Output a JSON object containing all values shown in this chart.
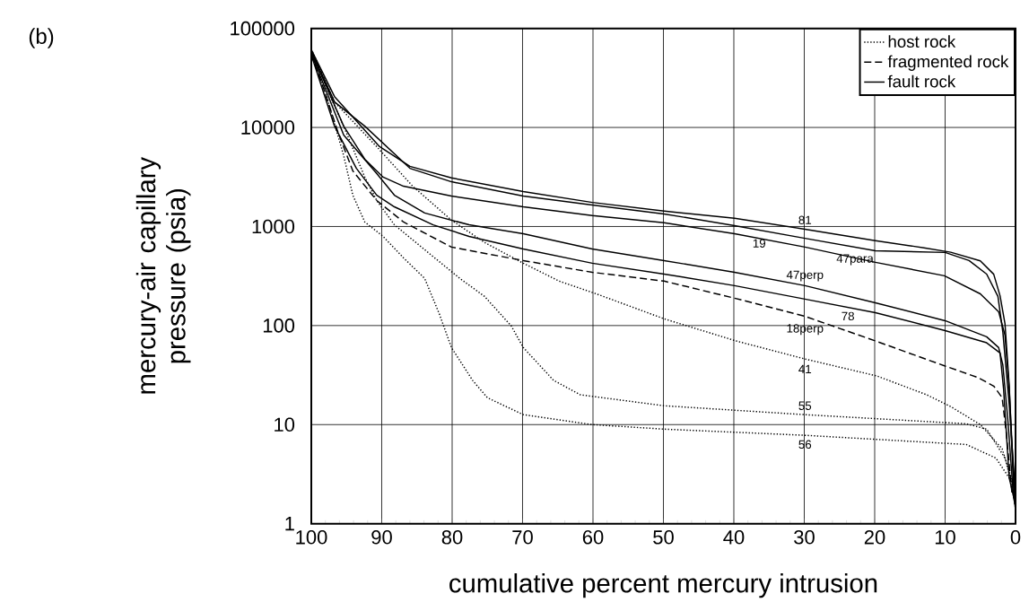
{
  "chart_data": {
    "type": "line",
    "xlabel": "cumulative percent mercury intrusion",
    "ylabel": "mercury-air capillary pressure (psia)",
    "xlim": [
      100,
      0
    ],
    "ylim": [
      1,
      100000
    ],
    "log": "y",
    "grid": true,
    "legend": "top right",
    "xticks": [
      100,
      90,
      80,
      70,
      60,
      50,
      40,
      30,
      20,
      10,
      0
    ],
    "yticks": [
      1,
      10,
      100,
      1000,
      10000,
      100000
    ],
    "series": [
      {
        "name": "host rock",
        "color": "#000000",
        "line_style": "dotted",
        "x": [
          100,
          96.7,
          90.7,
          85.6,
          80.1,
          75.4,
          69.9,
          64.8,
          59.2,
          49.9,
          39.7,
          29.9,
          19.7,
          12.6,
          9.2,
          5.0,
          1.9,
          0.6,
          0
        ],
        "values": [
          62000,
          18100,
          6380,
          2550,
          1160,
          690,
          426,
          281,
          205,
          117,
          70,
          46,
          31,
          20,
          15.2,
          10,
          5.7,
          2.9,
          1.4
        ]
      },
      {
        "color": "#000000",
        "line_style": "dotted",
        "x": [
          100,
          97.7,
          95.4,
          92.4,
          90.7,
          88.2,
          83.1,
          78.9,
          75.4,
          71.6,
          69.9,
          65.6,
          61.8,
          49.9,
          29.9,
          7.0,
          4.1,
          1.5,
          0.3,
          0
        ],
        "values": [
          60000,
          23800,
          10300,
          3150,
          1830,
          1040,
          524,
          299,
          197,
          99,
          60,
          28,
          20,
          15.5,
          12.6,
          10.2,
          9.0,
          4.6,
          2.2,
          1.6
        ]
      },
      {
        "color": "#000000",
        "line_style": "dotted",
        "x": [
          100,
          97.7,
          95.4,
          94.1,
          92.4,
          89.8,
          86.9,
          83.9,
          81.8,
          80.1,
          77.1,
          75.0,
          69.9,
          60.1,
          49.9,
          29.9,
          7.0,
          2.8,
          0.9,
          0
        ],
        "values": [
          57000,
          19300,
          5190,
          2070,
          1110,
          795,
          482,
          299,
          130,
          60,
          28,
          18.7,
          12.6,
          10,
          9.0,
          7.8,
          6.3,
          4.6,
          2.9,
          1.7
        ]
      },
      {
        "name": "fragmented rock",
        "color": "#000000",
        "line_style": "dashed",
        "x": [
          100,
          98.3,
          96.2,
          94.1,
          90.7,
          86.9,
          80.1,
          69.9,
          60.1,
          49.9,
          39.9,
          29.9,
          19.9,
          10.0,
          5.4,
          3.1,
          1.9,
          1.3,
          0.5,
          0
        ],
        "values": [
          55000,
          25300,
          8900,
          3640,
          1830,
          1110,
          620,
          453,
          345,
          281,
          189,
          124,
          70,
          39,
          30,
          24.5,
          18.7,
          8.1,
          2.0,
          1.8
        ]
      },
      {
        "name": "fault rock",
        "color": "#000000",
        "line_style": "solid",
        "x": [
          100,
          96.7,
          90.3,
          86.0,
          80.1,
          69.9,
          60.1,
          49.9,
          39.9,
          29.9,
          19.9,
          13.0,
          9.2,
          5.0,
          3.1,
          2.2,
          1.5,
          0.9,
          0.3,
          0
        ],
        "values": [
          61000,
          20500,
          6400,
          4050,
          3100,
          2250,
          1750,
          1430,
          1210,
          940,
          720,
          610,
          550,
          450,
          330,
          200,
          105,
          25,
          2.5,
          1.5
        ]
      },
      {
        "color": "#000000",
        "line_style": "solid",
        "x": [
          100,
          96.7,
          92.4,
          86.0,
          80.1,
          69.9,
          60.1,
          49.9,
          39.9,
          29.9,
          19.9,
          10.0,
          6.6,
          4.1,
          2.5,
          1.8,
          0.9,
          0
        ],
        "values": [
          59000,
          18100,
          10300,
          3870,
          2830,
          2030,
          1650,
          1340,
          1020,
          760,
          570,
          547,
          453,
          331,
          197,
          86,
          16,
          1.9
        ]
      },
      {
        "color": "#000000",
        "line_style": "solid",
        "x": [
          100,
          95.4,
          92.4,
          89.8,
          86.9,
          80.1,
          69.9,
          60.1,
          49.9,
          39.9,
          29.9,
          19.9,
          10.1,
          5.0,
          2.4,
          1.5,
          0.9,
          0
        ],
        "values": [
          58000,
          10300,
          4780,
          3150,
          2550,
          2030,
          1580,
          1290,
          1090,
          845,
          620,
          435,
          318,
          209,
          138,
          80,
          23,
          1.3
        ]
      },
      {
        "color": "#000000",
        "line_style": "solid",
        "x": [
          100,
          95.4,
          90.7,
          88.2,
          83.9,
          77.6,
          69.9,
          60.1,
          49.9,
          39.9,
          29.9,
          19.9,
          10.0,
          4.1,
          2.4,
          1.8,
          1.1,
          0.3,
          0
        ],
        "values": [
          56000,
          8400,
          3420,
          2070,
          1370,
          1040,
          845,
          594,
          453,
          345,
          253,
          170,
          112,
          77,
          60,
          40,
          11.3,
          1.9,
          1.45
        ]
      },
      {
        "color": "#000000",
        "line_style": "solid",
        "x": [
          100,
          96.7,
          93.6,
          90.7,
          88.2,
          82.7,
          77.6,
          69.9,
          60.1,
          49.9,
          39.9,
          29.9,
          19.9,
          10.0,
          4.1,
          2.2,
          1.7,
          0.9,
          0
        ],
        "values": [
          54000,
          10300,
          3870,
          2070,
          1580,
          1040,
          795,
          594,
          426,
          331,
          253,
          185,
          135,
          89,
          67,
          53,
          23,
          2.9,
          1.55
        ]
      }
    ],
    "annotations": [
      "(b)",
      "81",
      "19",
      "47para",
      "47perp",
      "78",
      "18perp",
      "41",
      "55",
      "56"
    ]
  }
}
